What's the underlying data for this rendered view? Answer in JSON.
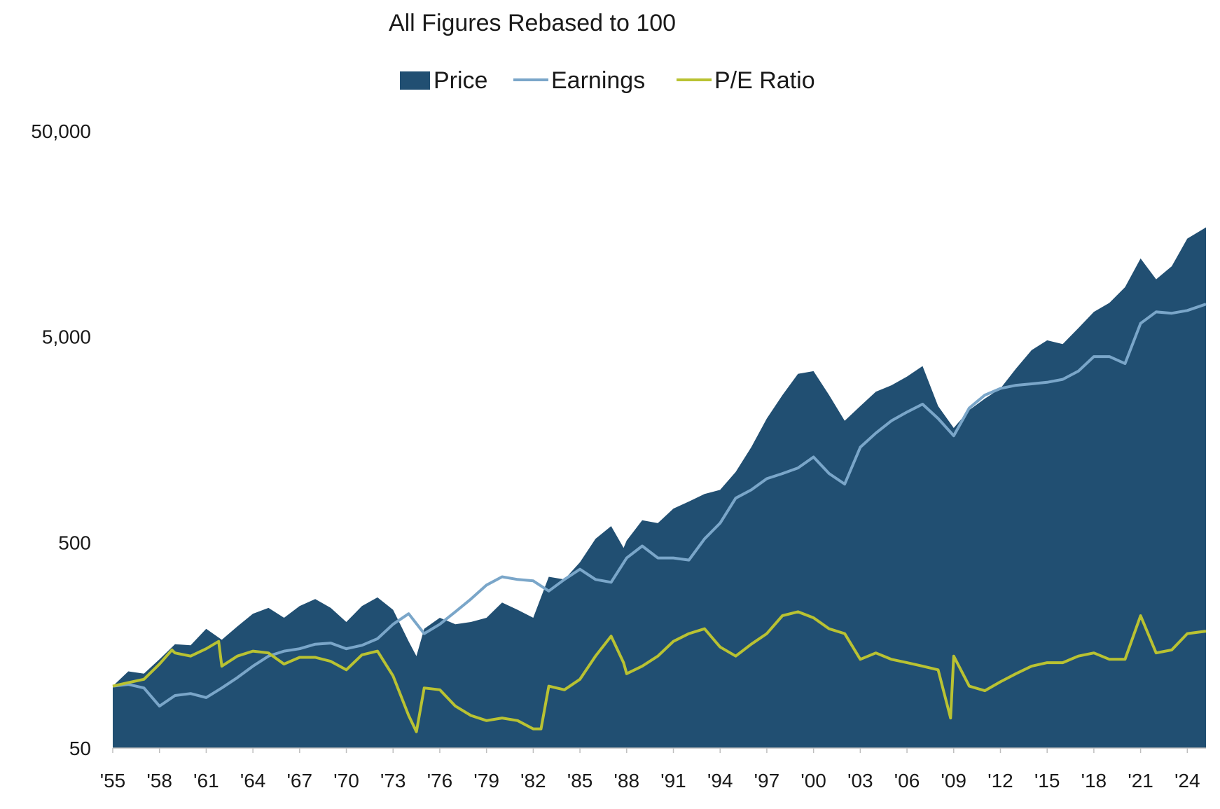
{
  "chart_data": {
    "type": "area",
    "title": "All Figures Rebased to 100",
    "xlabel": "",
    "ylabel": "",
    "y_scale": "log",
    "ylim": [
      50,
      50000
    ],
    "xlim": [
      1955,
      2025.2
    ],
    "grid": false,
    "legend_position": "top-center",
    "y_ticks": [
      {
        "value": 50,
        "label": "50"
      },
      {
        "value": 500,
        "label": "500"
      },
      {
        "value": 5000,
        "label": "5,000"
      },
      {
        "value": 50000,
        "label": "50,000"
      }
    ],
    "x_ticks": [
      {
        "value": 1955,
        "label": "'55"
      },
      {
        "value": 1958,
        "label": "'58"
      },
      {
        "value": 1961,
        "label": "'61"
      },
      {
        "value": 1964,
        "label": "'64"
      },
      {
        "value": 1967,
        "label": "'67"
      },
      {
        "value": 1970,
        "label": "'70"
      },
      {
        "value": 1973,
        "label": "'73"
      },
      {
        "value": 1976,
        "label": "'76"
      },
      {
        "value": 1979,
        "label": "'79"
      },
      {
        "value": 1982,
        "label": "'82"
      },
      {
        "value": 1985,
        "label": "'85"
      },
      {
        "value": 1988,
        "label": "'88"
      },
      {
        "value": 1991,
        "label": "'91"
      },
      {
        "value": 1994,
        "label": "'94"
      },
      {
        "value": 1997,
        "label": "'97"
      },
      {
        "value": 2000,
        "label": "'00"
      },
      {
        "value": 2003,
        "label": "'03"
      },
      {
        "value": 2006,
        "label": "'06"
      },
      {
        "value": 2009,
        "label": "'09"
      },
      {
        "value": 2012,
        "label": "'12"
      },
      {
        "value": 2015,
        "label": "'15"
      },
      {
        "value": 2018,
        "label": "'18"
      },
      {
        "value": 2021,
        "label": "'21"
      },
      {
        "value": 2024,
        "label": "'24"
      }
    ],
    "series": [
      {
        "name": "Price",
        "style": "area",
        "color": "#214f72",
        "x": [
          1955,
          1956,
          1957,
          1958,
          1959,
          1960,
          1961,
          1962,
          1963,
          1964,
          1965,
          1966,
          1967,
          1968,
          1969,
          1970,
          1971,
          1972,
          1973,
          1974,
          1974.5,
          1975,
          1976,
          1977,
          1978,
          1979,
          1980,
          1981,
          1982,
          1983,
          1984,
          1985,
          1986,
          1987,
          1987.8,
          1988,
          1989,
          1990,
          1991,
          1992,
          1993,
          1994,
          1995,
          1996,
          1997,
          1998,
          1999,
          2000,
          2001,
          2002,
          2003,
          2004,
          2005,
          2006,
          2007,
          2008,
          2009,
          2010,
          2011,
          2012,
          2013,
          2014,
          2015,
          2016,
          2017,
          2018,
          2019,
          2020,
          2021,
          2022,
          2023,
          2024,
          2025.2
        ],
        "values": [
          100,
          118,
          115,
          135,
          160,
          158,
          190,
          168,
          195,
          225,
          240,
          215,
          245,
          265,
          240,
          205,
          245,
          270,
          235,
          165,
          140,
          190,
          215,
          200,
          205,
          215,
          255,
          235,
          215,
          340,
          330,
          400,
          520,
          600,
          470,
          510,
          640,
          620,
          730,
          790,
          860,
          900,
          1100,
          1450,
          2000,
          2600,
          3300,
          3400,
          2600,
          1950,
          2300,
          2700,
          2900,
          3200,
          3600,
          2300,
          1800,
          2200,
          2500,
          2800,
          3500,
          4300,
          4800,
          4600,
          5500,
          6600,
          7300,
          8700,
          12000,
          9500,
          11000,
          15000,
          17000
        ]
      },
      {
        "name": "Earnings",
        "style": "line",
        "color": "#7aa6c9",
        "x": [
          1955,
          1956,
          1957,
          1958,
          1959,
          1960,
          1961,
          1962,
          1963,
          1964,
          1965,
          1966,
          1967,
          1968,
          1969,
          1970,
          1971,
          1972,
          1973,
          1974,
          1975,
          1976,
          1977,
          1978,
          1979,
          1980,
          1981,
          1982,
          1983,
          1984,
          1985,
          1986,
          1987,
          1988,
          1989,
          1990,
          1991,
          1992,
          1993,
          1994,
          1995,
          1996,
          1997,
          1998,
          1999,
          2000,
          2001,
          2002,
          2003,
          2004,
          2005,
          2006,
          2007,
          2008,
          2009,
          2010,
          2011,
          2012,
          2013,
          2014,
          2015,
          2016,
          2017,
          2018,
          2019,
          2020,
          2021,
          2022,
          2023,
          2024,
          2025.2
        ],
        "values": [
          100,
          102,
          98,
          80,
          90,
          92,
          88,
          98,
          110,
          125,
          140,
          148,
          152,
          160,
          162,
          152,
          158,
          170,
          200,
          225,
          180,
          200,
          230,
          265,
          310,
          340,
          330,
          325,
          290,
          330,
          370,
          330,
          320,
          420,
          480,
          420,
          420,
          410,
          520,
          620,
          820,
          900,
          1020,
          1080,
          1150,
          1300,
          1080,
          960,
          1450,
          1700,
          1950,
          2150,
          2350,
          2000,
          1650,
          2250,
          2600,
          2800,
          2900,
          2950,
          3000,
          3100,
          3400,
          4000,
          4000,
          3700,
          5800,
          6600,
          6500,
          6700,
          7200
        ]
      },
      {
        "name": "P/E Ratio",
        "style": "line",
        "color": "#b9c232",
        "x": [
          1955,
          1956,
          1957,
          1958,
          1958.8,
          1959,
          1960,
          1961,
          1961.8,
          1962,
          1963,
          1964,
          1965,
          1966,
          1967,
          1968,
          1969,
          1970,
          1971,
          1972,
          1973,
          1974,
          1974.5,
          1975,
          1976,
          1977,
          1978,
          1979,
          1980,
          1981,
          1982,
          1982.5,
          1983,
          1984,
          1985,
          1986,
          1987,
          1987.8,
          1988,
          1989,
          1990,
          1991,
          1992,
          1993,
          1994,
          1995,
          1996,
          1997,
          1998,
          1999,
          2000,
          2001,
          2002,
          2003,
          2004,
          2005,
          2006,
          2007,
          2008,
          2008.8,
          2009,
          2010,
          2011,
          2012,
          2013,
          2014,
          2015,
          2016,
          2017,
          2018,
          2019,
          2020,
          2021,
          2022,
          2023,
          2024,
          2025.2
        ],
        "values": [
          100,
          104,
          108,
          128,
          150,
          145,
          140,
          152,
          165,
          125,
          140,
          148,
          145,
          128,
          138,
          138,
          132,
          120,
          142,
          148,
          112,
          72,
          60,
          98,
          96,
          80,
          72,
          68,
          70,
          68,
          62,
          62,
          100,
          96,
          108,
          140,
          175,
          130,
          115,
          125,
          140,
          165,
          180,
          190,
          155,
          140,
          160,
          180,
          220,
          230,
          215,
          190,
          180,
          135,
          145,
          135,
          130,
          125,
          120,
          70,
          140,
          100,
          95,
          105,
          115,
          125,
          130,
          130,
          140,
          145,
          135,
          135,
          220,
          145,
          150,
          180,
          185
        ]
      }
    ],
    "legend": [
      {
        "label": "Price",
        "color": "#214f72",
        "marker": "filled-box"
      },
      {
        "label": "Earnings",
        "color": "#7aa6c9",
        "marker": "line"
      },
      {
        "label": "P/E Ratio",
        "color": "#b9c232",
        "marker": "line"
      }
    ]
  }
}
